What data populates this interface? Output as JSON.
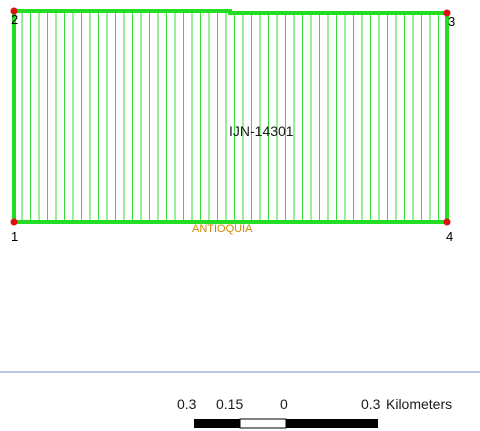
{
  "map": {
    "parcel": {
      "id_label": "IJN-14301",
      "fill_hatch_color": "#33dd33",
      "outline_color": "#22dd22"
    },
    "region_label": {
      "text": "ANTIOQUIA",
      "color": "#cc8800"
    },
    "vertices": [
      {
        "label": "1"
      },
      {
        "label": "2"
      },
      {
        "label": "3"
      },
      {
        "label": "4"
      }
    ],
    "vertex_color": "#dd1111",
    "divider_color": "#b7c8e3"
  },
  "scale_bar": {
    "ticks": [
      "0.3",
      "0.15",
      "0",
      "0.3"
    ],
    "unit": "Kilometers"
  }
}
